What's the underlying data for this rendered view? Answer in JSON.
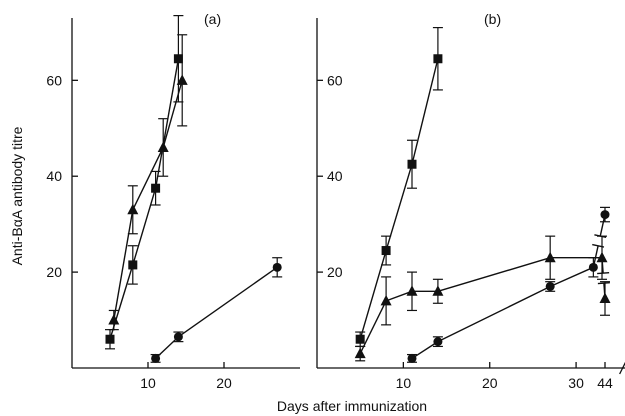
{
  "figure": {
    "ylabel": "Anti-BαA antibody titre",
    "xlabel": "Days after immunization"
  },
  "colors": {
    "ink": "#111111",
    "background": "#ffffff"
  },
  "chart_data": [
    {
      "type": "line",
      "panel_label": "(a)",
      "ylim": [
        0,
        73
      ],
      "y_ticks": [
        20,
        40,
        60
      ],
      "y_tick_labels": [
        "20",
        "40",
        "60"
      ],
      "xlim": [
        0,
        30
      ],
      "x_ticks": [
        10,
        20
      ],
      "x_tick_labels": [
        "10",
        "20"
      ],
      "axis_break": false,
      "series": [
        {
          "marker": "square",
          "points": [
            {
              "x": 5,
              "y": 6,
              "err": 2
            },
            {
              "x": 8,
              "y": 21.5,
              "err": 4
            },
            {
              "x": 11,
              "y": 37.5,
              "err": 3.5
            },
            {
              "x": 14,
              "y": 64.5,
              "err": 9
            }
          ]
        },
        {
          "marker": "triangle",
          "points": [
            {
              "x": 5.5,
              "y": 10,
              "err": 2
            },
            {
              "x": 8,
              "y": 33,
              "err": 5
            },
            {
              "x": 12,
              "y": 46,
              "err": 6
            },
            {
              "x": 14.5,
              "y": 60,
              "err": 9.5
            }
          ]
        },
        {
          "marker": "circle",
          "points": [
            {
              "x": 11,
              "y": 2,
              "err": 0.8
            },
            {
              "x": 14,
              "y": 6.5,
              "err": 1
            },
            {
              "x": 27,
              "y": 21,
              "err": 2
            }
          ]
        }
      ]
    },
    {
      "type": "line",
      "panel_label": "(b)",
      "ylim": [
        0,
        73
      ],
      "y_ticks": [
        20,
        40,
        60
      ],
      "y_tick_labels": [
        "20",
        "40",
        "60"
      ],
      "xlim": [
        0,
        46
      ],
      "x_ticks": [
        10,
        20,
        30,
        44
      ],
      "x_tick_labels": [
        "10",
        "20",
        "30",
        "44"
      ],
      "axis_break": true,
      "break_between": [
        34,
        44
      ],
      "series": [
        {
          "marker": "square",
          "points": [
            {
              "x": 5,
              "y": 6,
              "err": 1.5
            },
            {
              "x": 8,
              "y": 24.5,
              "err": 3
            },
            {
              "x": 11,
              "y": 42.5,
              "err": 5
            },
            {
              "x": 14,
              "y": 64.5,
              "err": 6.5
            }
          ]
        },
        {
          "marker": "triangle",
          "points": [
            {
              "x": 5,
              "y": 3,
              "err": 1.5
            },
            {
              "x": 8,
              "y": 14,
              "err": 5
            },
            {
              "x": 11,
              "y": 16,
              "err": 4
            },
            {
              "x": 14,
              "y": 16,
              "err": 2.5
            },
            {
              "x": 27,
              "y": 23,
              "err": 4.5
            },
            {
              "x": 33,
              "y": 23,
              "err": 4.5
            },
            {
              "x": 44,
              "y": 14.5,
              "err": 3.5
            }
          ]
        },
        {
          "marker": "circle",
          "points": [
            {
              "x": 11,
              "y": 2,
              "err": 0.8
            },
            {
              "x": 14,
              "y": 5.5,
              "err": 1
            },
            {
              "x": 27,
              "y": 17,
              "err": 1
            },
            {
              "x": 32,
              "y": 21,
              "err": 2
            },
            {
              "x": 44,
              "y": 32,
              "err": 1.5
            }
          ]
        }
      ]
    }
  ]
}
